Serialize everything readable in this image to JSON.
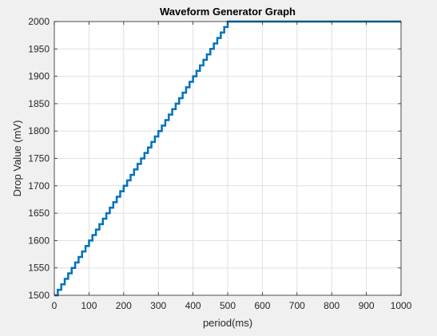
{
  "chart_data": {
    "type": "line",
    "title": "Waveform Generator Graph",
    "xlabel": "period(ms)",
    "ylabel": "Drop Value (mV)",
    "xlim": [
      0,
      1000
    ],
    "ylim": [
      1500,
      2000
    ],
    "xticks": [
      "0",
      "100",
      "200",
      "300",
      "400",
      "500",
      "600",
      "700",
      "800",
      "900",
      "1000"
    ],
    "yticks": [
      "1500",
      "1550",
      "1600",
      "1650",
      "1700",
      "1750",
      "1800",
      "1850",
      "1900",
      "1950",
      "2000"
    ],
    "grid": true,
    "series": [
      {
        "color": "#0072bd",
        "x": [
          0,
          500,
          1000
        ],
        "y": [
          1500,
          2000,
          2000
        ],
        "step_ms": 10,
        "step_mv": 10
      }
    ]
  }
}
